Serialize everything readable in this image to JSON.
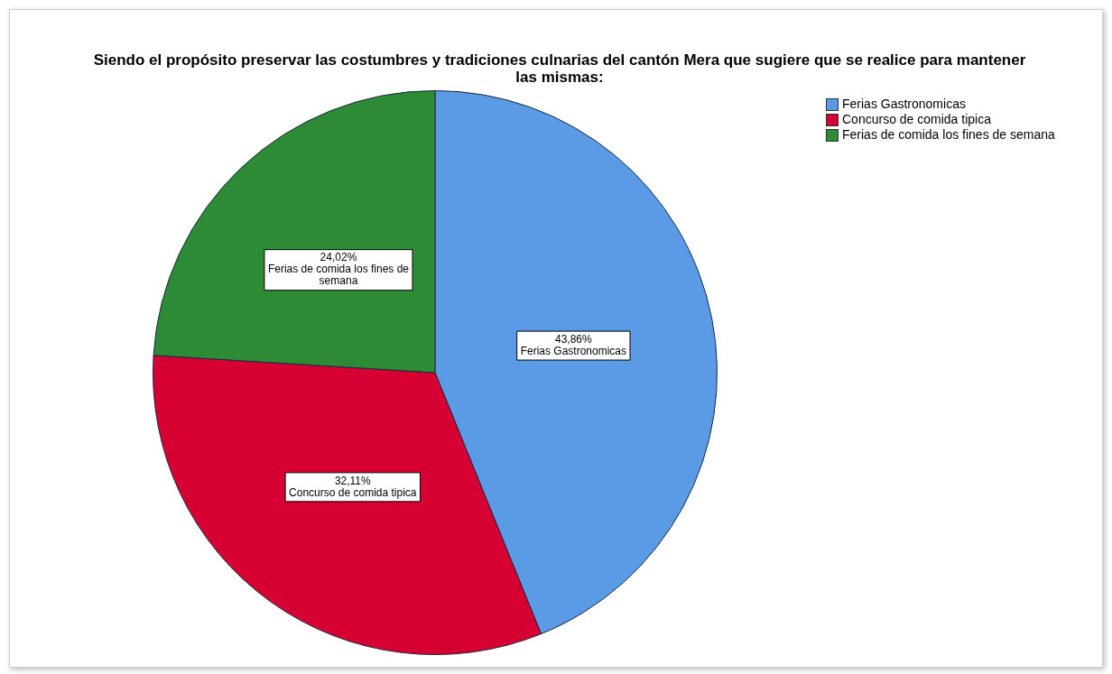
{
  "chart_data": {
    "type": "pie",
    "title": "Siendo el propósito preservar las costumbres y tradiciones culnarias del cantón Mera que sugiere que se realice para mantener las mismas:",
    "categories": [
      "Ferias Gastronomicas",
      "Concurso de comida tipica",
      "Ferias de comida los fines de semana"
    ],
    "values": [
      43.86,
      32.11,
      24.02
    ],
    "value_labels": [
      "43,86%",
      "32,11%",
      "24,02%"
    ],
    "colors": [
      "#5b9be6",
      "#d70033",
      "#2e8b35"
    ],
    "legend": "top right"
  }
}
